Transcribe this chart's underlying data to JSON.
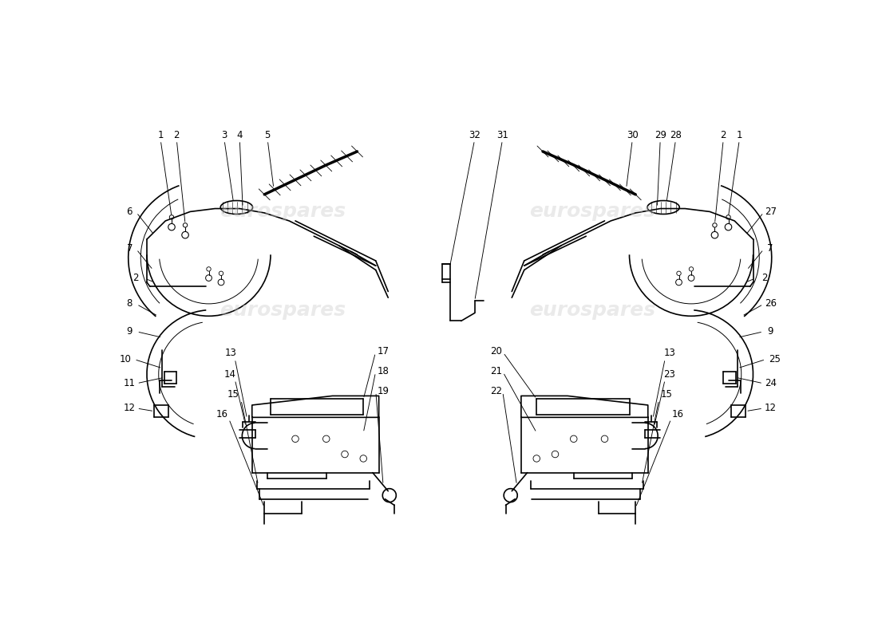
{
  "bg_color": "#ffffff",
  "line_color": "#000000",
  "text_color": "#000000",
  "watermark": "eurospares",
  "watermark_color": "#cccccc"
}
